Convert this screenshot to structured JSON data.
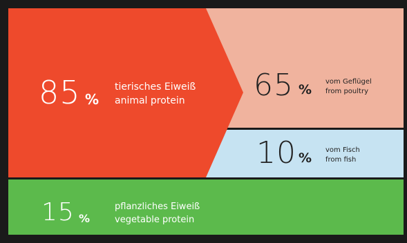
{
  "segments": {
    "animal": {
      "value": "85",
      "percent_sign": "%",
      "label_de": "tierisches Eiweiß",
      "label_en": "animal protein",
      "color": "#ee4a2c"
    },
    "poultry": {
      "value": "65",
      "percent_sign": "%",
      "label_de": "vom Geflügel",
      "label_en": "from poultry",
      "color": "#f0b39e"
    },
    "fish": {
      "value": "10",
      "percent_sign": "%",
      "label_de": "vom Fisch",
      "label_en": "from fish",
      "color": "#c6e3f2"
    },
    "vegetable": {
      "value": "15",
      "percent_sign": "%",
      "label_de": "pflanzliches Eiweiß",
      "label_en": "vegetable protein",
      "color": "#5cba4c"
    }
  },
  "colors": {
    "frame": "#1a1a1a",
    "light_text": "#ffffff",
    "dark_text": "#222222"
  }
}
